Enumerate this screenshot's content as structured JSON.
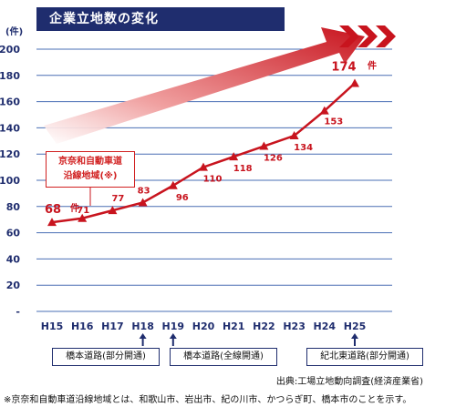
{
  "header": {
    "title": "企業立地数の変化"
  },
  "note": {
    "line1": "京奈和自動車道",
    "line2": "沿線地域(※)"
  },
  "events": [
    {
      "label": "橋本道路(部分開通)"
    },
    {
      "label": "橋本道路(全線開通)"
    },
    {
      "label": "紀北東道路(部分開通)"
    }
  ],
  "source": "出典:工場立地動向調査(経済産業省)",
  "footnote": "※京奈和自動車道沿線地域とは、和歌山市、岩出市、紀の川市、かつらぎ町、橋本市のことを示す。",
  "chart_data": {
    "type": "line",
    "title": "企業立地数の変化",
    "ylabel": "(件)",
    "xlabel": "",
    "categories": [
      "H15",
      "H16",
      "H17",
      "H18",
      "H19",
      "H20",
      "H21",
      "H22",
      "H23",
      "H24",
      "H25"
    ],
    "series": [
      {
        "values": [
          68,
          71,
          77,
          83,
          96,
          110,
          118,
          126,
          134,
          153,
          174
        ]
      }
    ],
    "y_tick_labels": [
      "-",
      "20",
      "40",
      "60",
      "80",
      "100",
      "120",
      "140",
      "160",
      "180",
      "200"
    ],
    "ylim": [
      0,
      200
    ],
    "y_tick_step": 20,
    "grid": true,
    "first_value_unit": "件",
    "last_value_unit": "件",
    "event_markers": [
      "H18",
      "H19",
      "H25"
    ],
    "colors": {
      "line": "#c8141e",
      "grid": "#4a6fb4",
      "title_bg": "#1f2d6e",
      "arrow": "#c8141e"
    }
  }
}
